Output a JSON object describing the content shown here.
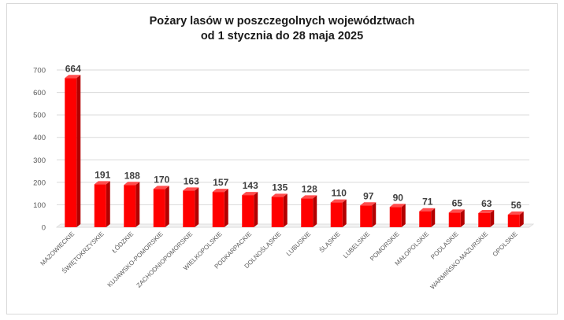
{
  "chart_data": {
    "type": "bar",
    "title_line1": "Pożary lasów w poszczegolnych województwach",
    "title_line2": "od 1 stycznia do 28 maja 2025",
    "xlabel": "",
    "ylabel": "",
    "ylim": [
      0,
      700
    ],
    "yticks": [
      "0",
      "100",
      "200",
      "300",
      "400",
      "500",
      "600",
      "700"
    ],
    "grid": true,
    "legend": "none",
    "bar_color": "#ff0000",
    "categories": [
      "MAZOWIECKIE",
      "ŚWIĘTOKRZYSKIE",
      "ŁÓDZKIE",
      "KUJAWSKO-POMORSKIE",
      "ZACHODNIOPOMORSKIE",
      "WIELKOPOLSKIE",
      "PODKARPACKIE",
      "DOLNOŚLĄSKIE",
      "LUBUSKIE",
      "ŚLĄSKIE",
      "LUBELSKIE",
      "POMORSKIE",
      "MAŁOPOLSKIE",
      "PODLASKIE",
      "WARMIŃSKO-MAZURSKIE",
      "OPOLSKIE"
    ],
    "values": [
      664,
      191,
      188,
      170,
      163,
      157,
      143,
      135,
      128,
      110,
      97,
      90,
      71,
      65,
      63,
      56
    ],
    "value_labels": [
      "664",
      "191",
      "188",
      "170",
      "163",
      "157",
      "143",
      "135",
      "128",
      "110",
      "97",
      "90",
      "71",
      "65",
      "63",
      "56"
    ]
  }
}
